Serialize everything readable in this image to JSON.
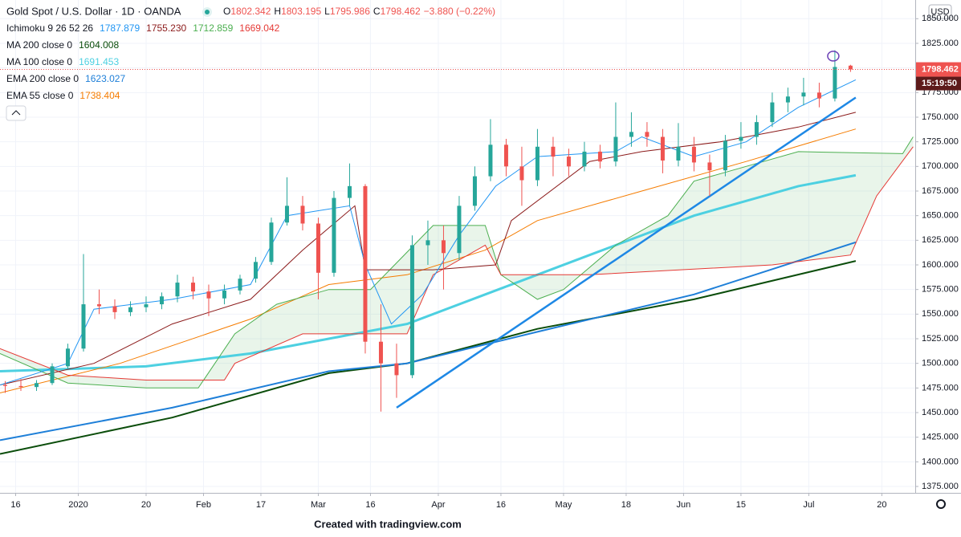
{
  "chart_data": {
    "type": "candlestick",
    "title": "Gold Spot / U.S. Dollar · 1D · OANDA",
    "ohlc_labels": [
      "O",
      "H",
      "L",
      "C"
    ],
    "change": "−3.880 (−0.22%)",
    "ichimoku_label": "Ichimoku 9 26 52 26",
    "currency": "USD",
    "countdown": "15:19:50",
    "footer": "Created with tradingview.com",
    "up_color": "#26a69a",
    "down_color": "#ef5350",
    "x": [
      -2,
      1,
      4,
      7,
      10,
      13,
      16,
      19,
      22,
      25,
      28,
      31,
      34,
      37,
      40,
      43,
      46,
      49,
      52,
      55,
      58,
      61,
      64,
      67,
      70,
      73,
      76,
      79,
      82,
      85,
      88,
      91,
      94,
      97,
      100,
      103,
      106,
      109,
      112,
      115,
      118,
      121,
      124,
      127,
      130,
      133,
      136,
      139,
      142,
      145,
      148,
      151,
      154,
      157,
      160
    ],
    "open": [
      1478,
      1477,
      1476,
      1480,
      1497,
      1515,
      1560,
      1558,
      1552,
      1557,
      1560,
      1568,
      1582,
      1573,
      1566,
      1574,
      1586,
      1603,
      1643,
      1660,
      1642,
      1592,
      1668,
      1680,
      1522,
      1500,
      1488,
      1620,
      1625,
      1612,
      1660,
      1690,
      1722,
      1700,
      1686,
      1720,
      1710,
      1700,
      1715,
      1705,
      1730,
      1735,
      1730,
      1706,
      1720,
      1704,
      1696,
      1726,
      1730,
      1745,
      1765,
      1771,
      1775,
      1769,
      1802.342
    ],
    "high": [
      1482,
      1484,
      1483,
      1500,
      1520,
      1611,
      1575,
      1565,
      1563,
      1568,
      1572,
      1590,
      1588,
      1580,
      1580,
      1590,
      1608,
      1648,
      1689,
      1670,
      1648,
      1675,
      1703,
      1682,
      1560,
      1520,
      1630,
      1645,
      1640,
      1670,
      1700,
      1748,
      1728,
      1720,
      1738,
      1730,
      1718,
      1725,
      1722,
      1765,
      1755,
      1745,
      1738,
      1744,
      1730,
      1712,
      1732,
      1745,
      1752,
      1775,
      1780,
      1790,
      1785,
      1818,
      1803.195
    ],
    "low": [
      1470,
      1472,
      1472,
      1478,
      1494,
      1512,
      1550,
      1545,
      1548,
      1552,
      1555,
      1562,
      1565,
      1548,
      1560,
      1570,
      1582,
      1600,
      1640,
      1635,
      1565,
      1588,
      1660,
      1510,
      1451,
      1465,
      1485,
      1600,
      1575,
      1605,
      1655,
      1685,
      1690,
      1660,
      1680,
      1690,
      1690,
      1695,
      1698,
      1700,
      1720,
      1720,
      1693,
      1700,
      1695,
      1670,
      1690,
      1718,
      1722,
      1740,
      1755,
      1762,
      1760,
      1766,
      1795.986
    ],
    "close": [
      1477,
      1476,
      1480,
      1497,
      1515,
      1560,
      1558,
      1552,
      1557,
      1560,
      1568,
      1582,
      1573,
      1566,
      1574,
      1586,
      1603,
      1643,
      1660,
      1642,
      1592,
      1668,
      1680,
      1522,
      1500,
      1488,
      1620,
      1625,
      1612,
      1660,
      1690,
      1722,
      1700,
      1686,
      1720,
      1710,
      1700,
      1715,
      1705,
      1730,
      1735,
      1730,
      1706,
      1720,
      1704,
      1696,
      1726,
      1730,
      1745,
      1765,
      1771,
      1775,
      1769,
      1801,
      1798.462
    ],
    "series": [
      {
        "color": "#2196f3",
        "width": 1,
        "legend_value": {
          "value": 1787.879,
          "label": "1787.879"
        },
        "x": [
          -3,
          10,
          15,
          30,
          45,
          52,
          58,
          64,
          67,
          72,
          78,
          85,
          92,
          100,
          115,
          120,
          130,
          140,
          150,
          161
        ],
        "values": [
          1478,
          1500,
          1555,
          1565,
          1580,
          1650,
          1655,
          1660,
          1600,
          1540,
          1570,
          1630,
          1680,
          1710,
          1715,
          1730,
          1710,
          1725,
          1760,
          1788
        ]
      },
      {
        "color": "#8b1a1a",
        "width": 1,
        "legend_value": {
          "value": 1755.23,
          "label": "1755.230"
        },
        "x": [
          -3,
          15,
          30,
          45,
          55,
          65,
          67,
          80,
          92,
          95,
          110,
          120,
          135,
          150,
          161
        ],
        "values": [
          1478,
          1500,
          1540,
          1565,
          1615,
          1660,
          1595,
          1595,
          1600,
          1645,
          1705,
          1715,
          1725,
          1740,
          1755
        ]
      },
      {
        "color": "#4caf50",
        "width": 1,
        "legend_value": {
          "value": 1712.859,
          "label": "1712.859"
        },
        "x": [
          -3,
          10,
          25,
          35,
          42,
          50,
          60,
          68,
          80,
          90,
          93,
          100,
          105,
          115,
          125,
          130,
          140,
          150,
          170,
          172
        ],
        "values": [
          1510,
          1480,
          1475,
          1475,
          1530,
          1560,
          1575,
          1575,
          1640,
          1640,
          1590,
          1565,
          1575,
          1620,
          1650,
          1685,
          1700,
          1715,
          1713,
          1730
        ]
      },
      {
        "color": "#e53935",
        "width": 1,
        "legend_value": {
          "value": 1669.042,
          "label": "1669.042"
        },
        "x": [
          -3,
          10,
          25,
          40,
          42,
          55,
          75,
          80,
          90,
          93,
          110,
          145,
          160,
          165,
          172
        ],
        "values": [
          1515,
          1488,
          1483,
          1483,
          1500,
          1530,
          1530,
          1590,
          1620,
          1590,
          1590,
          1600,
          1610,
          1670,
          1720
        ]
      },
      {
        "name": "MA 200 close 0",
        "color": "#0b4d0b",
        "width": 2,
        "legend_value": {
          "value": 1604.008,
          "label": "1604.008"
        },
        "x": [
          -3,
          30,
          60,
          75,
          100,
          130,
          161
        ],
        "values": [
          1408,
          1445,
          1490,
          1500,
          1535,
          1565,
          1604
        ]
      },
      {
        "name": "MA 100 close 0",
        "color": "#4dd0e1",
        "width": 3,
        "legend_value": {
          "value": 1691.453,
          "label": "1691.453"
        },
        "x": [
          -3,
          25,
          45,
          60,
          75,
          90,
          110,
          130,
          150,
          161
        ],
        "values": [
          1492,
          1497,
          1510,
          1525,
          1540,
          1570,
          1610,
          1650,
          1680,
          1691
        ]
      },
      {
        "name": "EMA 200 close 0",
        "color": "#1e7fd8",
        "width": 2,
        "legend_value": {
          "value": 1623.027,
          "label": "1623.027"
        },
        "x": [
          -3,
          30,
          60,
          75,
          100,
          130,
          161
        ],
        "values": [
          1422,
          1455,
          1492,
          1500,
          1532,
          1570,
          1623
        ]
      },
      {
        "name": "EMA 55 close 0",
        "color": "#f57c00",
        "width": 1,
        "legend_value": {
          "value": 1738.404,
          "label": "1738.404"
        },
        "x": [
          -3,
          20,
          45,
          60,
          75,
          90,
          100,
          120,
          140,
          161
        ],
        "values": [
          1470,
          1500,
          1545,
          1580,
          1590,
          1615,
          1645,
          1675,
          1705,
          1738
        ]
      }
    ],
    "trendline": {
      "color": "#1e88e5",
      "x": [
        73,
        161
      ],
      "values": [
        1455,
        1770
      ]
    },
    "xlim": [
      -3,
      172.4
    ],
    "xticks": [
      {
        "value": 0,
        "label": "16"
      },
      {
        "value": 12,
        "label": "2020"
      },
      {
        "value": 25,
        "label": "20"
      },
      {
        "value": 36,
        "label": "Feb"
      },
      {
        "value": 47,
        "label": "17"
      },
      {
        "value": 58,
        "label": "Mar"
      },
      {
        "value": 68,
        "label": "16"
      },
      {
        "value": 81,
        "label": "Apr"
      },
      {
        "value": 93,
        "label": "16"
      },
      {
        "value": 105,
        "label": "May"
      },
      {
        "value": 117,
        "label": "18"
      },
      {
        "value": 128,
        "label": "Jun"
      },
      {
        "value": 139,
        "label": "15"
      },
      {
        "value": 152,
        "label": "Jul"
      },
      {
        "value": 166,
        "label": "20"
      }
    ],
    "ylim": [
      1368.5,
      1869
    ],
    "yticks": [
      {
        "value": 1375,
        "label": "1375.000"
      },
      {
        "value": 1400,
        "label": "1400.000"
      },
      {
        "value": 1425,
        "label": "1425.000"
      },
      {
        "value": 1450,
        "label": "1450.000"
      },
      {
        "value": 1475,
        "label": "1475.000"
      },
      {
        "value": 1500,
        "label": "1500.000"
      },
      {
        "value": 1525,
        "label": "1525.000"
      },
      {
        "value": 1550,
        "label": "1550.000"
      },
      {
        "value": 1575,
        "label": "1575.000"
      },
      {
        "value": 1600,
        "label": "1600.000"
      },
      {
        "value": 1625,
        "label": "1625.000"
      },
      {
        "value": 1650,
        "label": "1650.000"
      },
      {
        "value": 1675,
        "label": "1675.000"
      },
      {
        "value": 1700,
        "label": "1700.000"
      },
      {
        "value": 1725,
        "label": "1725.000"
      },
      {
        "value": 1750,
        "label": "1750.000"
      },
      {
        "value": 1775,
        "label": "1775.000"
      },
      {
        "value": 1800,
        "label": "1800.000"
      },
      {
        "value": 1825,
        "label": "1825.000"
      },
      {
        "value": 1850,
        "label": "1850.000"
      }
    ]
  }
}
